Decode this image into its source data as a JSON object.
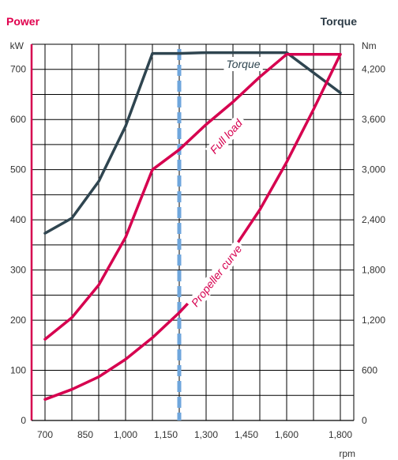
{
  "header": {
    "left_title": "Power",
    "right_title": "Torque",
    "left_unit": "kW",
    "right_unit": "Nm",
    "x_unit": "rpm"
  },
  "colors": {
    "power_title": "#e0004d",
    "torque_title": "#2b3a45",
    "full_load": "#d6004f",
    "propeller": "#d6004f",
    "torque": "#2f4550",
    "dashed": "#6fa6dc",
    "grid": "#000000",
    "left_axis": "#d6004f"
  },
  "chart_data": {
    "type": "line",
    "x_ticks": [
      700,
      850,
      1000,
      1150,
      1300,
      1450,
      1600,
      1800
    ],
    "x_tick_labels": [
      "700",
      "850",
      "1,000",
      "1,150",
      "1,300",
      "1,450",
      "1,600",
      "1,800"
    ],
    "xlim": [
      650,
      1850
    ],
    "ylim_left": [
      0,
      750
    ],
    "ylim_right": [
      0,
      4500
    ],
    "y_ticks_left": [
      0,
      100,
      200,
      300,
      400,
      500,
      600,
      700
    ],
    "y_ticks_right": [
      0,
      600,
      1200,
      1800,
      2400,
      3000,
      3600,
      4200
    ],
    "y_tick_labels_right": [
      "0",
      "600",
      "1,200",
      "1,800",
      "2,400",
      "3,000",
      "3,600",
      "4,200"
    ],
    "grid": true,
    "marker_line_rpm": 1200,
    "series": [
      {
        "name": "Torque",
        "axis": "right",
        "points": [
          [
            700,
            2240
          ],
          [
            800,
            2420
          ],
          [
            900,
            2860
          ],
          [
            1000,
            3520
          ],
          [
            1100,
            4390
          ],
          [
            1200,
            4390
          ],
          [
            1300,
            4400
          ],
          [
            1400,
            4400
          ],
          [
            1500,
            4400
          ],
          [
            1600,
            4400
          ],
          [
            1700,
            4160
          ],
          [
            1800,
            3920
          ]
        ]
      },
      {
        "name": "Full load",
        "axis": "left",
        "points": [
          [
            700,
            162
          ],
          [
            800,
            205
          ],
          [
            900,
            270
          ],
          [
            1000,
            365
          ],
          [
            1100,
            500
          ],
          [
            1200,
            540
          ],
          [
            1300,
            590
          ],
          [
            1400,
            635
          ],
          [
            1500,
            685
          ],
          [
            1600,
            730
          ],
          [
            1700,
            730
          ],
          [
            1800,
            730
          ]
        ]
      },
      {
        "name": "Propeller curve",
        "axis": "left",
        "points": [
          [
            700,
            42
          ],
          [
            800,
            62
          ],
          [
            900,
            87
          ],
          [
            1000,
            122
          ],
          [
            1100,
            165
          ],
          [
            1200,
            215
          ],
          [
            1300,
            272
          ],
          [
            1400,
            340
          ],
          [
            1500,
            420
          ],
          [
            1600,
            515
          ],
          [
            1700,
            620
          ],
          [
            1800,
            730
          ]
        ]
      }
    ]
  }
}
